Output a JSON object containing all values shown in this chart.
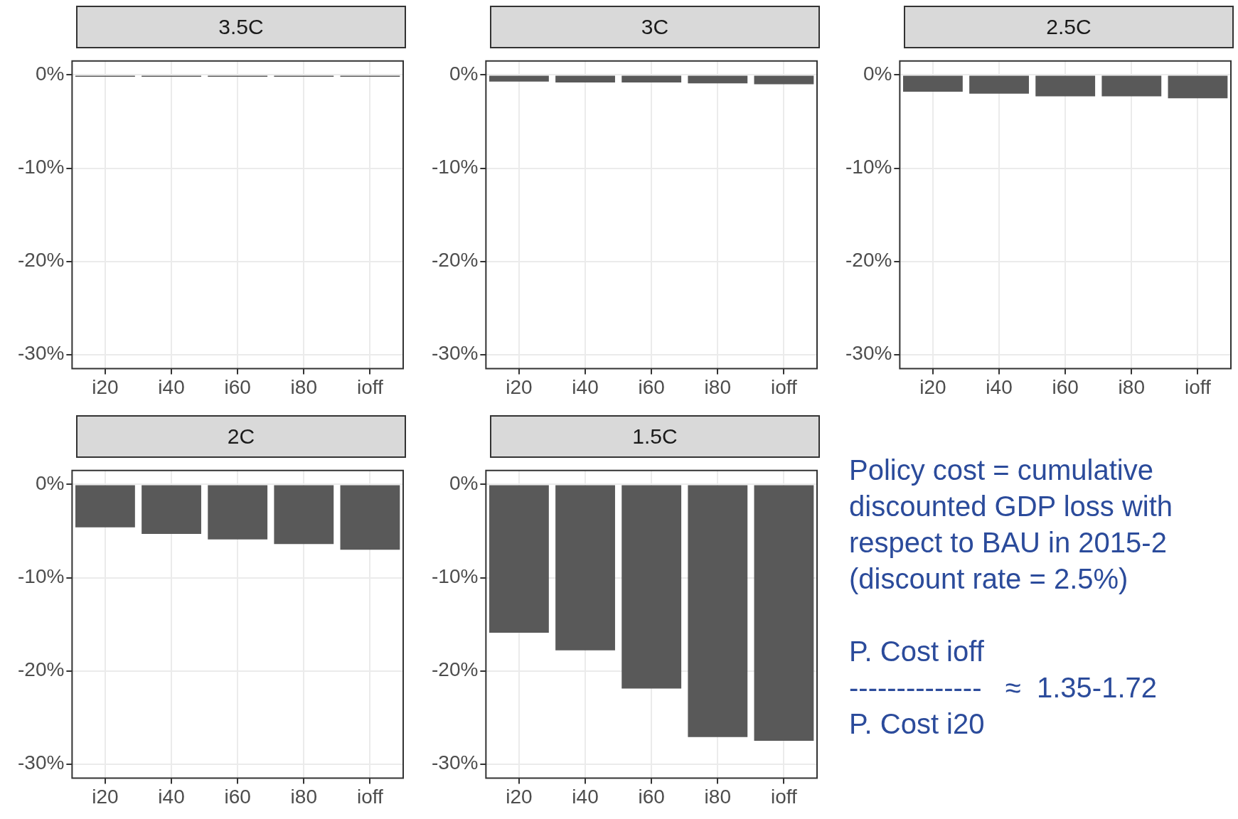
{
  "chart_data": [
    {
      "type": "bar",
      "title": "3.5C",
      "categories": [
        "i20",
        "i40",
        "i60",
        "i80",
        "ioff"
      ],
      "values": [
        -0.2,
        -0.2,
        -0.2,
        -0.2,
        -0.2
      ],
      "color": "#595959",
      "ylim": [
        -31.5,
        1.5
      ],
      "yticks": [
        {
          "value": -30,
          "label": "-30%"
        },
        {
          "value": -20,
          "label": "-20%"
        },
        {
          "value": -10,
          "label": "-10%"
        },
        {
          "value": 0,
          "label": "0%"
        }
      ],
      "grid": true
    },
    {
      "type": "bar",
      "title": "3C",
      "categories": [
        "i20",
        "i40",
        "i60",
        "i80",
        "ioff"
      ],
      "values": [
        -0.7,
        -0.8,
        -0.8,
        -0.9,
        -1.0
      ],
      "color": "#595959",
      "ylim": [
        -31.5,
        1.5
      ],
      "yticks": [
        {
          "value": -30,
          "label": "-30%"
        },
        {
          "value": -20,
          "label": "-20%"
        },
        {
          "value": -10,
          "label": "-10%"
        },
        {
          "value": 0,
          "label": "0%"
        }
      ],
      "grid": true
    },
    {
      "type": "bar",
      "title": "2.5C",
      "categories": [
        "i20",
        "i40",
        "i60",
        "i80",
        "ioff"
      ],
      "values": [
        -1.8,
        -2.0,
        -2.3,
        -2.3,
        -2.5
      ],
      "color": "#595959",
      "ylim": [
        -31.5,
        1.5
      ],
      "yticks": [
        {
          "value": -30,
          "label": "-30%"
        },
        {
          "value": -20,
          "label": "-20%"
        },
        {
          "value": -10,
          "label": "-10%"
        },
        {
          "value": 0,
          "label": "0%"
        }
      ],
      "grid": true
    },
    {
      "type": "bar",
      "title": "2C",
      "categories": [
        "i20",
        "i40",
        "i60",
        "i80",
        "ioff"
      ],
      "values": [
        -4.6,
        -5.3,
        -5.9,
        -6.4,
        -7.0
      ],
      "color": "#595959",
      "ylim": [
        -31.5,
        1.5
      ],
      "yticks": [
        {
          "value": -30,
          "label": "-30%"
        },
        {
          "value": -20,
          "label": "-20%"
        },
        {
          "value": -10,
          "label": "-10%"
        },
        {
          "value": 0,
          "label": "0%"
        }
      ],
      "grid": true
    },
    {
      "type": "bar",
      "title": "1.5C",
      "categories": [
        "i20",
        "i40",
        "i60",
        "i80",
        "ioff"
      ],
      "values": [
        -15.9,
        -17.8,
        -21.9,
        -27.1,
        -27.5
      ],
      "color": "#595959",
      "ylim": [
        -31.5,
        1.5
      ],
      "yticks": [
        {
          "value": -30,
          "label": "-30%"
        },
        {
          "value": -20,
          "label": "-20%"
        },
        {
          "value": -10,
          "label": "-10%"
        },
        {
          "value": 0,
          "label": "0%"
        }
      ],
      "grid": true
    },
    {
      "type": "other",
      "color": "#2b4b9b",
      "annotations": [
        "Policy cost = cumulative\ndiscounted GDP loss with\nrespect to BAU in 2015-2\n(discount rate = 2.5%)",
        "P. Cost ioff\n--------------   ≈  1.35-1.72\nP. Cost i20"
      ]
    }
  ]
}
